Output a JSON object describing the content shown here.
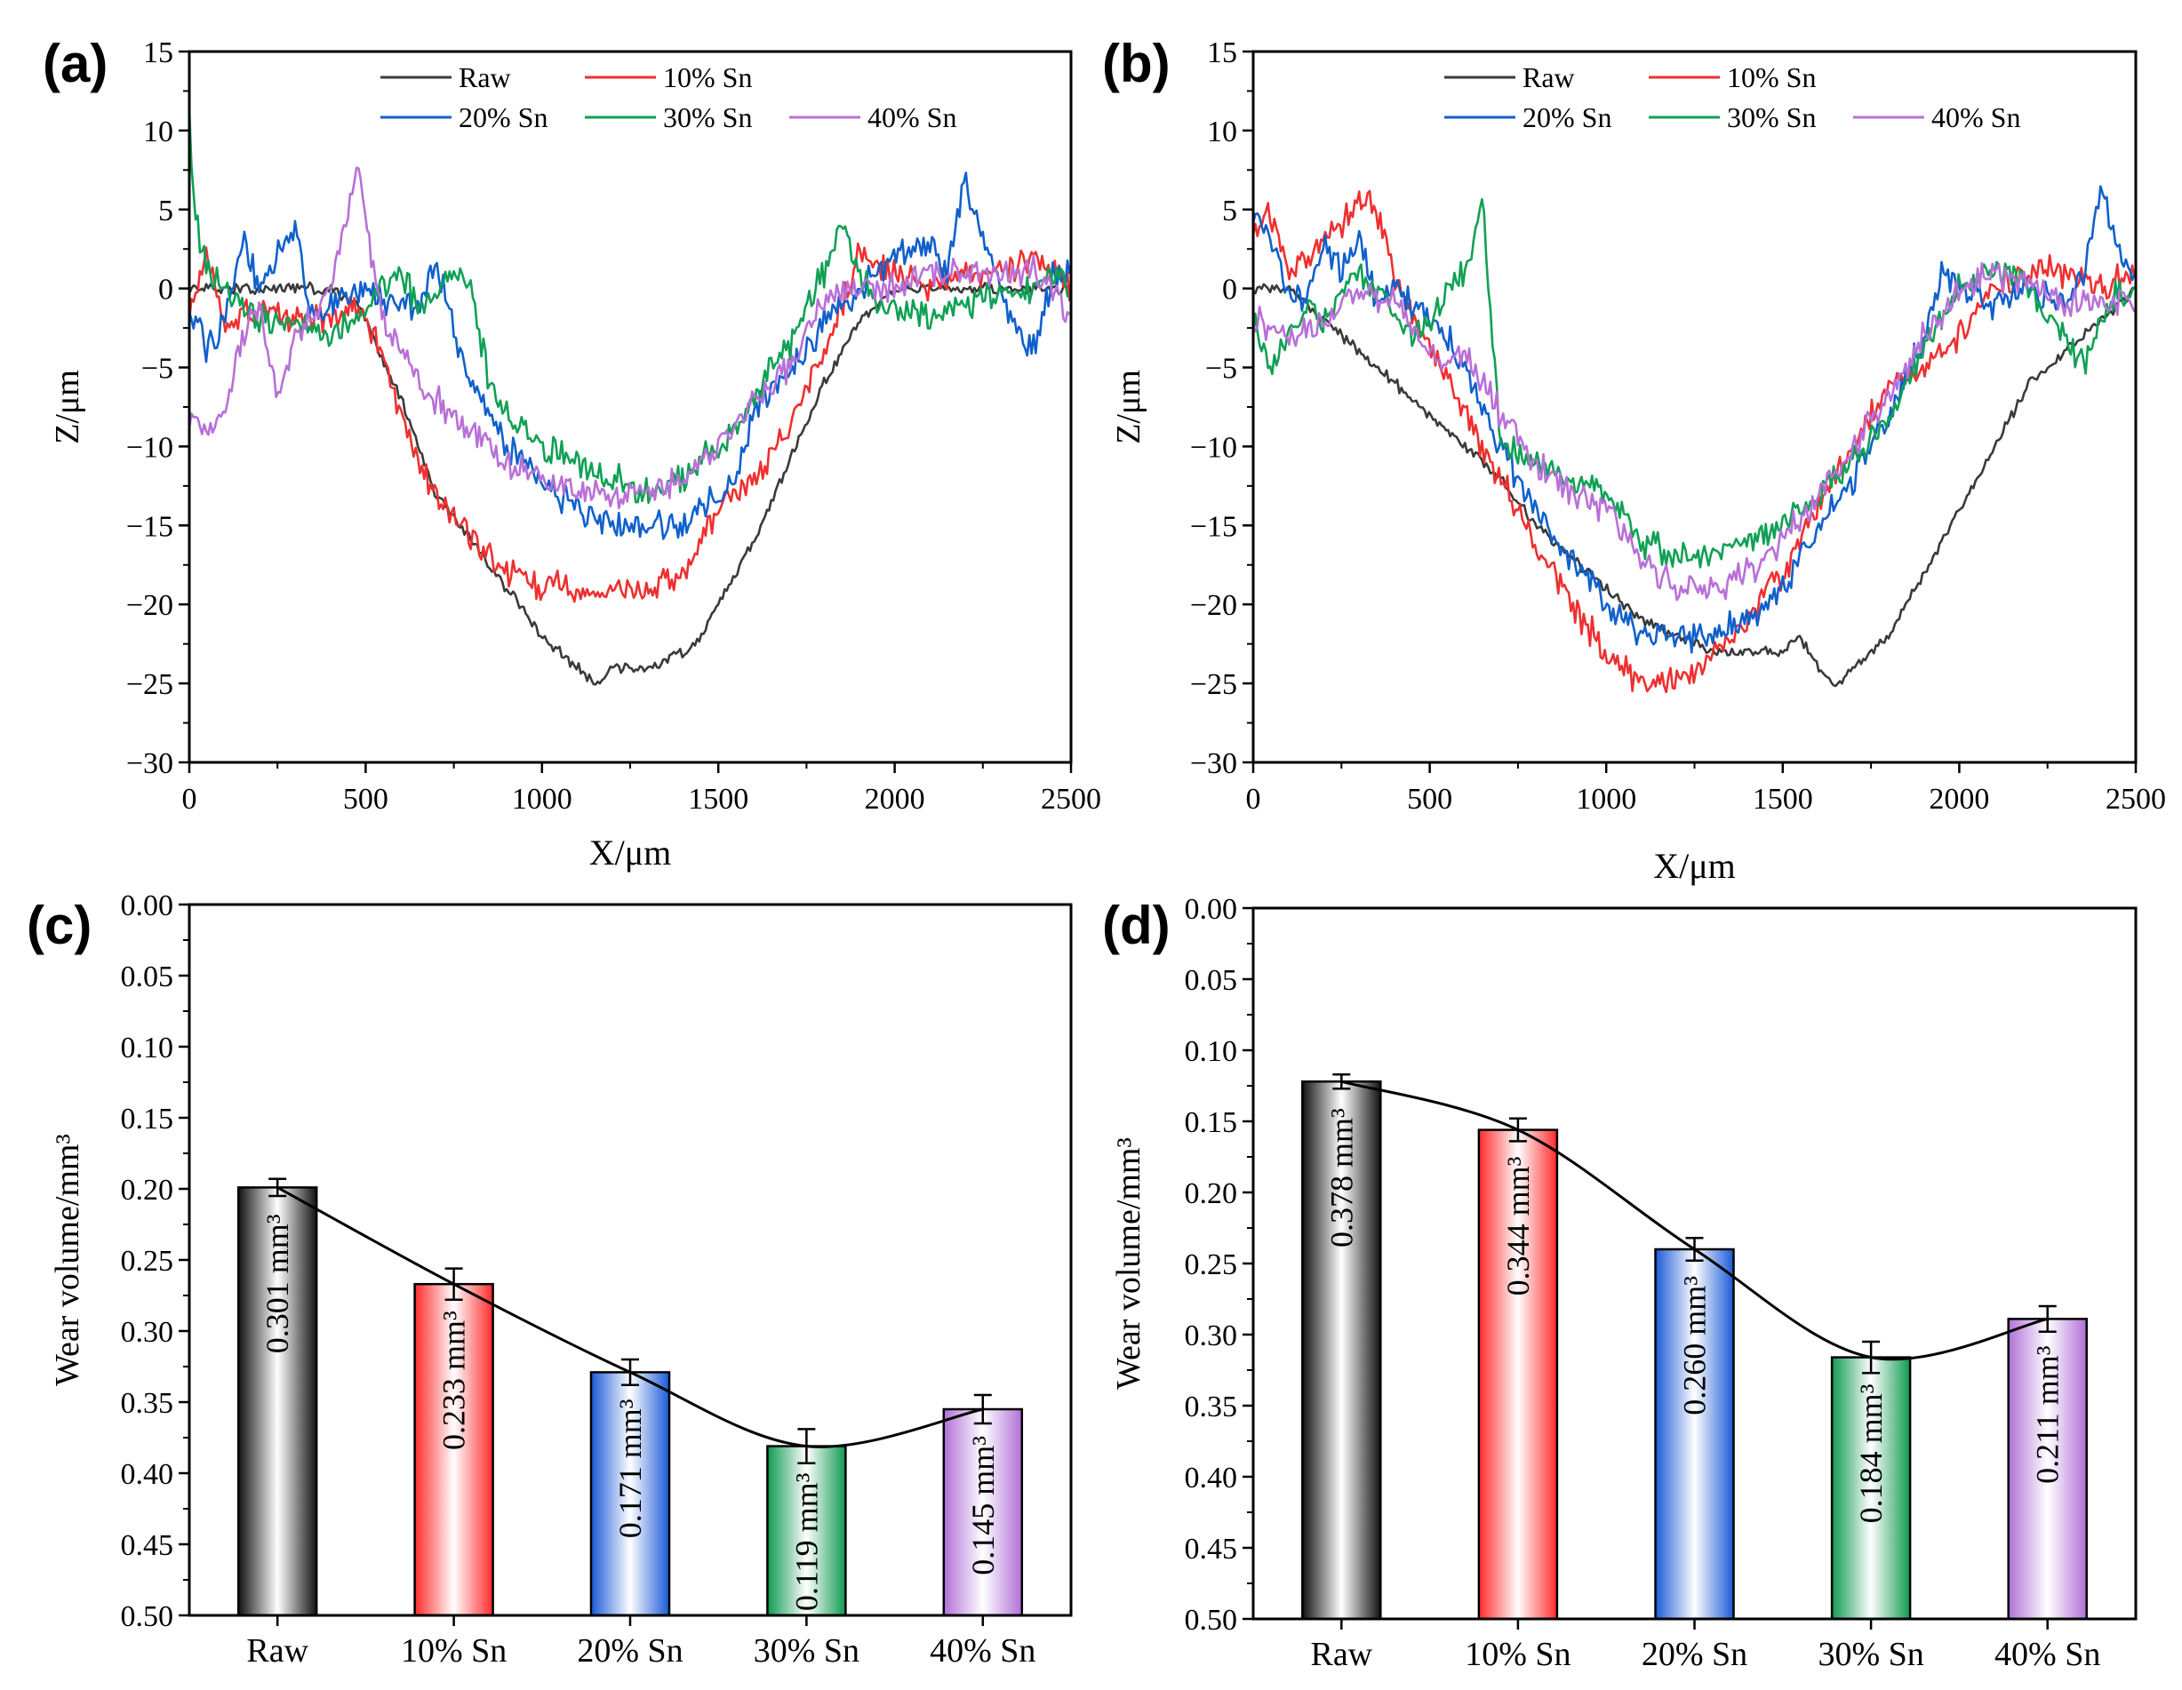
{
  "chart_data": [
    {
      "panel": "(a)",
      "type": "line",
      "xlabel": "X/μm",
      "ylabel": "Z/μm",
      "xlim": [
        0,
        2500
      ],
      "ylim": [
        -30,
        15
      ],
      "xticks": [
        "0",
        "500",
        "1000",
        "1500",
        "2000",
        "2500"
      ],
      "yticks": [
        "15",
        "10",
        "5",
        "0",
        "−5",
        "−10",
        "−15",
        "−20",
        "−25",
        "−30"
      ],
      "legend_position": "top-right",
      "series": [
        {
          "name": "Raw",
          "color": "#3a3a3a",
          "x": [
            0,
            100,
            200,
            300,
            400,
            480,
            520,
            560,
            600,
            650,
            700,
            800,
            900,
            1000,
            1100,
            1150,
            1200,
            1300,
            1400,
            1450,
            1500,
            1600,
            1700,
            1800,
            1900,
            2000,
            2100,
            2200,
            2300,
            2400,
            2500
          ],
          "y": [
            0,
            0,
            0,
            0,
            0,
            -1,
            -3,
            -5,
            -7,
            -10,
            -13,
            -16,
            -19,
            -22,
            -24,
            -25,
            -24,
            -24,
            -23,
            -22,
            -20,
            -16,
            -11,
            -6,
            -2,
            0,
            0,
            0,
            0,
            0,
            0
          ]
        },
        {
          "name": "10% Sn",
          "color": "#ee3030",
          "x": [
            0,
            50,
            100,
            200,
            300,
            400,
            480,
            520,
            560,
            600,
            650,
            700,
            800,
            900,
            1000,
            1050,
            1100,
            1150,
            1200,
            1300,
            1400,
            1450,
            1500,
            1550,
            1600,
            1700,
            1800,
            1850,
            1900,
            2000,
            2100,
            2200,
            2300,
            2400,
            2500
          ],
          "y": [
            -1,
            2,
            -2,
            -1,
            -2,
            -2,
            -1,
            -3,
            -5,
            -8,
            -11,
            -13,
            -16,
            -18,
            -19,
            -18,
            -20,
            -19,
            -19,
            -19,
            -18,
            -16,
            -14,
            -13,
            -12,
            -9,
            -4,
            -1,
            2,
            1,
            0,
            1,
            1,
            2,
            0
          ]
        },
        {
          "name": "20% Sn",
          "color": "#1060cc",
          "x": [
            0,
            50,
            100,
            150,
            200,
            300,
            350,
            400,
            450,
            500,
            550,
            600,
            650,
            700,
            750,
            800,
            900,
            1000,
            1100,
            1200,
            1300,
            1400,
            1450,
            1500,
            1550,
            1600,
            1700,
            1750,
            1800,
            1900,
            2000,
            2100,
            2150,
            2200,
            2250,
            2300,
            2350,
            2400,
            2450,
            2500
          ],
          "y": [
            -1,
            -4,
            -2,
            3,
            0,
            4,
            -2,
            -1,
            0,
            0,
            -1,
            -1,
            -1,
            2,
            -3,
            -6,
            -10,
            -12,
            -14,
            -15,
            -15,
            -15,
            -14,
            -13,
            -12,
            -8,
            -5,
            -4,
            -2,
            0,
            2,
            3,
            1,
            7,
            3,
            0,
            -3,
            -4,
            1,
            1
          ]
        },
        {
          "name": "30% Sn",
          "color": "#10a055",
          "x": [
            0,
            10,
            30,
            60,
            100,
            150,
            200,
            300,
            400,
            500,
            600,
            650,
            700,
            750,
            800,
            850,
            900,
            950,
            1000,
            1100,
            1200,
            1300,
            1400,
            1450,
            1500,
            1550,
            1600,
            1650,
            1700,
            1750,
            1800,
            1850,
            1900,
            1950,
            2000,
            2100,
            2200,
            2300,
            2400,
            2450,
            2500
          ],
          "y": [
            12,
            6,
            3,
            1,
            0,
            -1,
            -2,
            -2,
            -3,
            -1,
            1,
            -1,
            0,
            1,
            0,
            -6,
            -8,
            -9,
            -10,
            -11,
            -12,
            -13,
            -12,
            -11,
            -10,
            -9,
            -7,
            -5,
            -4,
            -1,
            1,
            4,
            1,
            -1,
            -1,
            -2,
            -1,
            0,
            0,
            1,
            0
          ]
        },
        {
          "name": "40% Sn",
          "color": "#b870d8",
          "x": [
            0,
            50,
            100,
            150,
            200,
            250,
            300,
            350,
            400,
            450,
            480,
            500,
            550,
            600,
            650,
            700,
            800,
            900,
            1000,
            1100,
            1200,
            1300,
            1400,
            1500,
            1600,
            1700,
            1750,
            1800,
            1900,
            2000,
            2100,
            2200,
            2300,
            2400,
            2450,
            2500
          ],
          "y": [
            -8,
            -9,
            -8,
            -3,
            -1,
            -7,
            -3,
            -2,
            0,
            5,
            8,
            4,
            -2,
            -4,
            -6,
            -7,
            -9,
            -11,
            -12,
            -13,
            -13,
            -13,
            -12,
            -10,
            -7,
            -5,
            -3,
            -1,
            0,
            0,
            1,
            1,
            1,
            1,
            0,
            -2
          ]
        }
      ]
    },
    {
      "panel": "(b)",
      "type": "line",
      "xlabel": "X/μm",
      "ylabel": "Z/μm",
      "xlim": [
        0,
        2500
      ],
      "ylim": [
        -30,
        15
      ],
      "xticks": [
        "0",
        "500",
        "1000",
        "1500",
        "2000",
        "2500"
      ],
      "yticks": [
        "15",
        "10",
        "5",
        "0",
        "−5",
        "−10",
        "−15",
        "−20",
        "−25",
        "−30"
      ],
      "legend_position": "top-right",
      "series": [
        {
          "name": "Raw",
          "color": "#3a3a3a",
          "x": [
            0,
            100,
            200,
            300,
            400,
            500,
            600,
            700,
            800,
            900,
            1000,
            1100,
            1200,
            1300,
            1400,
            1500,
            1550,
            1600,
            1650,
            1700,
            1800,
            1900,
            2000,
            2100,
            2200,
            2300,
            2400,
            2450,
            2500
          ],
          "y": [
            0,
            0,
            -2,
            -4,
            -6,
            -8,
            -10,
            -12,
            -15,
            -17,
            -19,
            -21,
            -22,
            -23,
            -23,
            -23,
            -22,
            -24,
            -25,
            -24,
            -22,
            -18,
            -14,
            -10,
            -6,
            -4,
            -2,
            -1,
            0
          ]
        },
        {
          "name": "10% Sn",
          "color": "#ee3030",
          "x": [
            0,
            50,
            100,
            200,
            250,
            300,
            350,
            400,
            450,
            500,
            600,
            700,
            800,
            900,
            1000,
            1050,
            1100,
            1150,
            1200,
            1250,
            1300,
            1350,
            1400,
            1500,
            1600,
            1700,
            1750,
            1800,
            1900,
            2000,
            2100,
            2200,
            2300,
            2400,
            2500
          ],
          "y": [
            4,
            5,
            1,
            3,
            4,
            6,
            5,
            1,
            -2,
            -4,
            -8,
            -12,
            -16,
            -20,
            -23,
            -24,
            -25,
            -25,
            -25,
            -24,
            -23,
            -22,
            -21,
            -18,
            -14,
            -10,
            -8,
            -6,
            -5,
            -3,
            0,
            1,
            1,
            0,
            1
          ]
        },
        {
          "name": "20% Sn",
          "color": "#1060cc",
          "x": [
            0,
            50,
            100,
            150,
            200,
            250,
            300,
            350,
            400,
            450,
            500,
            550,
            600,
            700,
            800,
            900,
            1000,
            1100,
            1200,
            1300,
            1400,
            1500,
            1600,
            1700,
            1800,
            1900,
            1950,
            2000,
            2100,
            2200,
            2300,
            2350,
            2400,
            2450,
            2500
          ],
          "y": [
            5,
            3,
            0,
            -1,
            3,
            1,
            3,
            -1,
            0,
            -1,
            -2,
            -3,
            -5,
            -10,
            -14,
            -17,
            -20,
            -22,
            -22,
            -22,
            -21,
            -19,
            -15,
            -12,
            -8,
            -3,
            1,
            0,
            -1,
            0,
            -1,
            1,
            6,
            3,
            0
          ]
        },
        {
          "name": "30% Sn",
          "color": "#10a055",
          "x": [
            0,
            50,
            100,
            150,
            200,
            250,
            300,
            350,
            400,
            450,
            500,
            550,
            600,
            650,
            700,
            800,
            900,
            1000,
            1100,
            1200,
            1300,
            1400,
            1500,
            1600,
            1700,
            1800,
            1900,
            1950,
            2000,
            2100,
            2200,
            2300,
            2350,
            2400,
            2450,
            2500
          ],
          "y": [
            -2,
            -5,
            -3,
            -1,
            -2,
            0,
            1,
            0,
            -2,
            -3,
            -2,
            0,
            1,
            5,
            -10,
            -11,
            -12,
            -13,
            -16,
            -17,
            -17,
            -16,
            -15,
            -13,
            -11,
            -8,
            -4,
            -2,
            0,
            1,
            0,
            -3,
            -5,
            -2,
            0,
            0
          ]
        },
        {
          "name": "40% Sn",
          "color": "#b870d8",
          "x": [
            0,
            100,
            200,
            300,
            400,
            500,
            550,
            600,
            700,
            800,
            900,
            1000,
            1100,
            1200,
            1300,
            1400,
            1500,
            1600,
            1700,
            1800,
            1900,
            2000,
            2100,
            2200,
            2300,
            2400,
            2500
          ],
          "y": [
            -2,
            -3,
            -2,
            0,
            -1,
            -4,
            -5,
            -4,
            -8,
            -11,
            -13,
            -14,
            -17,
            -19,
            -19,
            -18,
            -16,
            -13,
            -10,
            -7,
            -3,
            0,
            1,
            0,
            -1,
            -1,
            -1
          ]
        }
      ]
    },
    {
      "panel": "(c)",
      "type": "bar",
      "xlabel": "",
      "ylabel": "Wear volume/mm³",
      "ylim": [
        0,
        0.5
      ],
      "yticks": [
        "0.00",
        "0.05",
        "0.10",
        "0.15",
        "0.20",
        "0.25",
        "0.30",
        "0.35",
        "0.40",
        "0.45",
        "0.50"
      ],
      "categories": [
        "Raw",
        "10% Sn",
        "20% Sn",
        "30% Sn",
        "40% Sn"
      ],
      "values": [
        0.301,
        0.233,
        0.171,
        0.119,
        0.145
      ],
      "errors": [
        0.006,
        0.011,
        0.009,
        0.012,
        0.01
      ],
      "bar_labels": [
        "0.301 mm³",
        "0.233 mm³",
        "0.171 mm³",
        "0.119 mm³",
        "0.145 mm³"
      ],
      "bar_colors": [
        "#111111",
        "#ff2a2a",
        "#1a5ad8",
        "#0f9a50",
        "#b070d8"
      ],
      "trend_line": true
    },
    {
      "panel": "(d)",
      "type": "bar",
      "xlabel": "",
      "ylabel": "Wear volume/mm³",
      "ylim": [
        0,
        0.5
      ],
      "yticks": [
        "0.00",
        "0.05",
        "0.10",
        "0.15",
        "0.20",
        "0.25",
        "0.30",
        "0.35",
        "0.40",
        "0.45",
        "0.50"
      ],
      "categories": [
        "Raw",
        "10% Sn",
        "20% Sn",
        "30% Sn",
        "40% Sn"
      ],
      "values": [
        0.378,
        0.344,
        0.26,
        0.184,
        0.211
      ],
      "errors": [
        0.005,
        0.008,
        0.008,
        0.011,
        0.009
      ],
      "bar_labels": [
        "0.378 mm³",
        "0.344 mm³",
        "0.260 mm³",
        "0.184 mm³",
        "0.211 mm³"
      ],
      "bar_colors": [
        "#111111",
        "#ff2a2a",
        "#1a5ad8",
        "#0f9a50",
        "#b070d8"
      ],
      "trend_line": true
    }
  ]
}
